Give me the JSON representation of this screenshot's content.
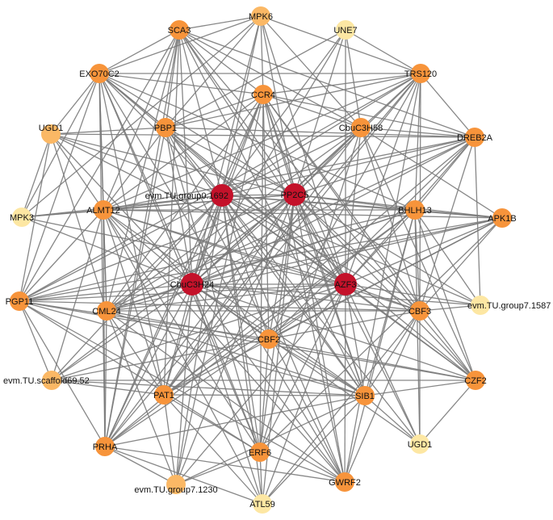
{
  "colors": {
    "hub": "#c4122a",
    "high": "#f7943b",
    "mid": "#fbb865",
    "low": "#fde7a3",
    "edge": "#7a7a7a"
  },
  "nodes": [
    {
      "id": "MPK6",
      "label": "MPK6",
      "tier": "mid"
    },
    {
      "id": "UNE7",
      "label": "UNE7",
      "tier": "low"
    },
    {
      "id": "SCA3",
      "label": "SCA3",
      "tier": "high"
    },
    {
      "id": "EXO70C2",
      "label": "EXO70C2",
      "tier": "high"
    },
    {
      "id": "TRS120",
      "label": "TRS120",
      "tier": "high"
    },
    {
      "id": "CCR4",
      "label": "CCR4",
      "tier": "high"
    },
    {
      "id": "PBP1",
      "label": "PBP1",
      "tier": "high"
    },
    {
      "id": "CbuC3H58",
      "label": "CbuC3H58",
      "tier": "high"
    },
    {
      "id": "UGD1a",
      "label": "UGD1",
      "tier": "mid"
    },
    {
      "id": "DREB2A",
      "label": "DREB2A",
      "tier": "high"
    },
    {
      "id": "evmTUgroup01692",
      "label": "evm.TU.group0.1692",
      "tier": "hub"
    },
    {
      "id": "PP2C5",
      "label": "PP2C5",
      "tier": "hub"
    },
    {
      "id": "MPK3",
      "label": "MPK3",
      "tier": "low"
    },
    {
      "id": "ALMT12",
      "label": "ALMT12",
      "tier": "high"
    },
    {
      "id": "BHLH13",
      "label": "BHLH13",
      "tier": "high"
    },
    {
      "id": "APK1B",
      "label": "APK1B",
      "tier": "high"
    },
    {
      "id": "CbuC3H24",
      "label": "CbuC3H24",
      "tier": "hub"
    },
    {
      "id": "AZF3",
      "label": "AZF3",
      "tier": "hub"
    },
    {
      "id": "PGP11",
      "label": "PGP11",
      "tier": "high"
    },
    {
      "id": "CML24",
      "label": "CML24",
      "tier": "high"
    },
    {
      "id": "CBF3",
      "label": "CBF3",
      "tier": "high"
    },
    {
      "id": "evmTUgroup71587",
      "label": "evm.TU.group7.1587",
      "tier": "low"
    },
    {
      "id": "CBF2",
      "label": "CBF2",
      "tier": "high"
    },
    {
      "id": "evmTUscaffold6952",
      "label": "evm.TU.scaffold69.52",
      "tier": "mid"
    },
    {
      "id": "CZF2",
      "label": "CZF2",
      "tier": "high"
    },
    {
      "id": "PAT1",
      "label": "PAT1",
      "tier": "high"
    },
    {
      "id": "SIB1",
      "label": "SIB1",
      "tier": "high"
    },
    {
      "id": "ERF6",
      "label": "ERF6",
      "tier": "high"
    },
    {
      "id": "UGD1b",
      "label": "UGD1",
      "tier": "low"
    },
    {
      "id": "PRHA",
      "label": "PRHA",
      "tier": "high"
    },
    {
      "id": "GWRF2",
      "label": "GWRF2",
      "tier": "high"
    },
    {
      "id": "evmTUgroup71230",
      "label": "evm.TU.group7.1230",
      "tier": "mid"
    },
    {
      "id": "ATL59",
      "label": "ATL59",
      "tier": "low"
    }
  ]
}
